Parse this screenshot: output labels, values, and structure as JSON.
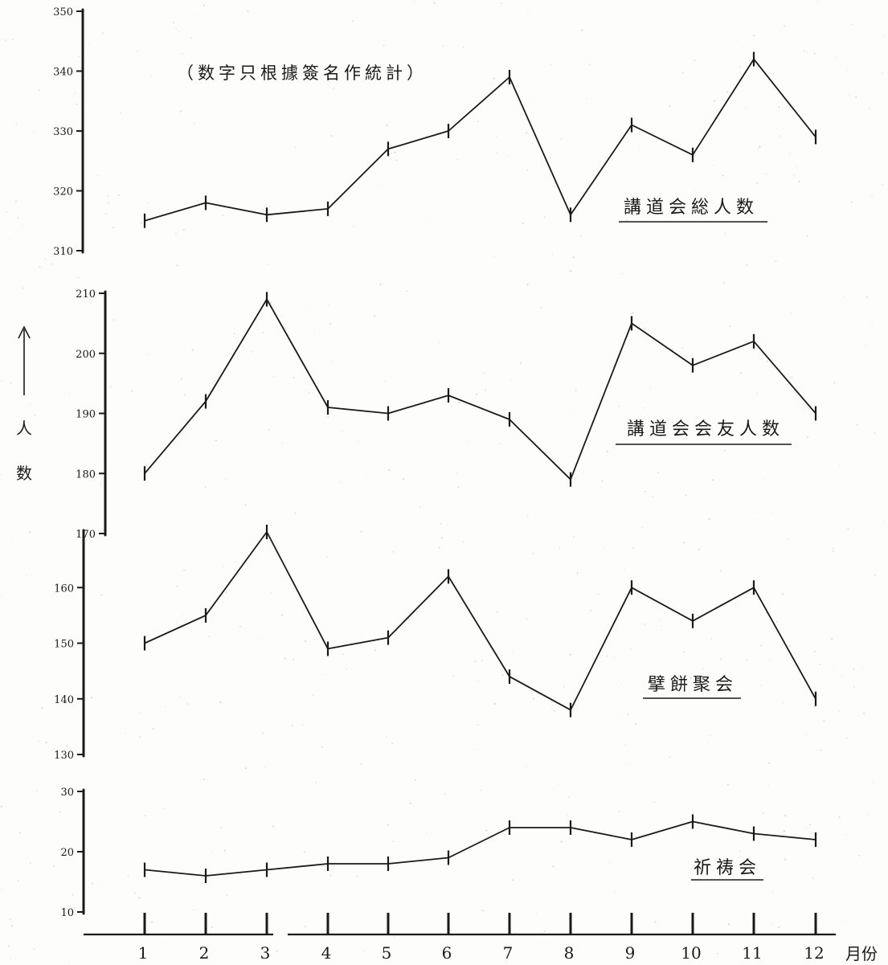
{
  "chart_data": [
    {
      "type": "line",
      "series": [
        {
          "name": "講道会総人数",
          "values": [
            315,
            318,
            316,
            317,
            327,
            330,
            339,
            316,
            331,
            326,
            342,
            329
          ]
        }
      ],
      "x": [
        1,
        2,
        3,
        4,
        5,
        6,
        7,
        8,
        9,
        10,
        11,
        12
      ],
      "yticks": [
        "310",
        "320",
        "330",
        "340",
        "350"
      ],
      "ylim": [
        310,
        350
      ]
    },
    {
      "type": "line",
      "series": [
        {
          "name": "講道会会友人数",
          "values": [
            180,
            192,
            209,
            191,
            190,
            193,
            189,
            179,
            205,
            198,
            202,
            190
          ]
        }
      ],
      "x": [
        1,
        2,
        3,
        4,
        5,
        6,
        7,
        8,
        9,
        10,
        11,
        12
      ],
      "yticks": [
        "170",
        "180",
        "190",
        "200",
        "210"
      ],
      "ylim": [
        170,
        210
      ]
    },
    {
      "type": "line",
      "series": [
        {
          "name": "擘餅聚会",
          "values": [
            150,
            155,
            170,
            149,
            151,
            162,
            144,
            138,
            160,
            154,
            160,
            140
          ]
        }
      ],
      "x": [
        1,
        2,
        3,
        4,
        5,
        6,
        7,
        8,
        9,
        10,
        11,
        12
      ],
      "yticks": [
        "130",
        "140",
        "150",
        "160"
      ],
      "ylim": [
        130,
        170
      ]
    },
    {
      "type": "line",
      "series": [
        {
          "name": "祈祷会",
          "values": [
            17,
            16,
            17,
            18,
            18,
            19,
            24,
            24,
            22,
            25,
            23,
            22
          ]
        }
      ],
      "x": [
        1,
        2,
        3,
        4,
        5,
        6,
        7,
        8,
        9,
        10,
        11,
        12
      ],
      "yticks": [
        "10",
        "20",
        "30"
      ],
      "ylim": [
        10,
        30
      ]
    }
  ],
  "annotation": "（数字只根據簽名作統計）",
  "ylabel": "人 数",
  "xlabel": "月份",
  "xticks": [
    "1",
    "2",
    "3",
    "4",
    "5",
    "6",
    "7",
    "8",
    "9",
    "10",
    "11",
    "12"
  ],
  "colors": {
    "ink": "#1a1a1a",
    "paper": "#fdfdfc"
  }
}
